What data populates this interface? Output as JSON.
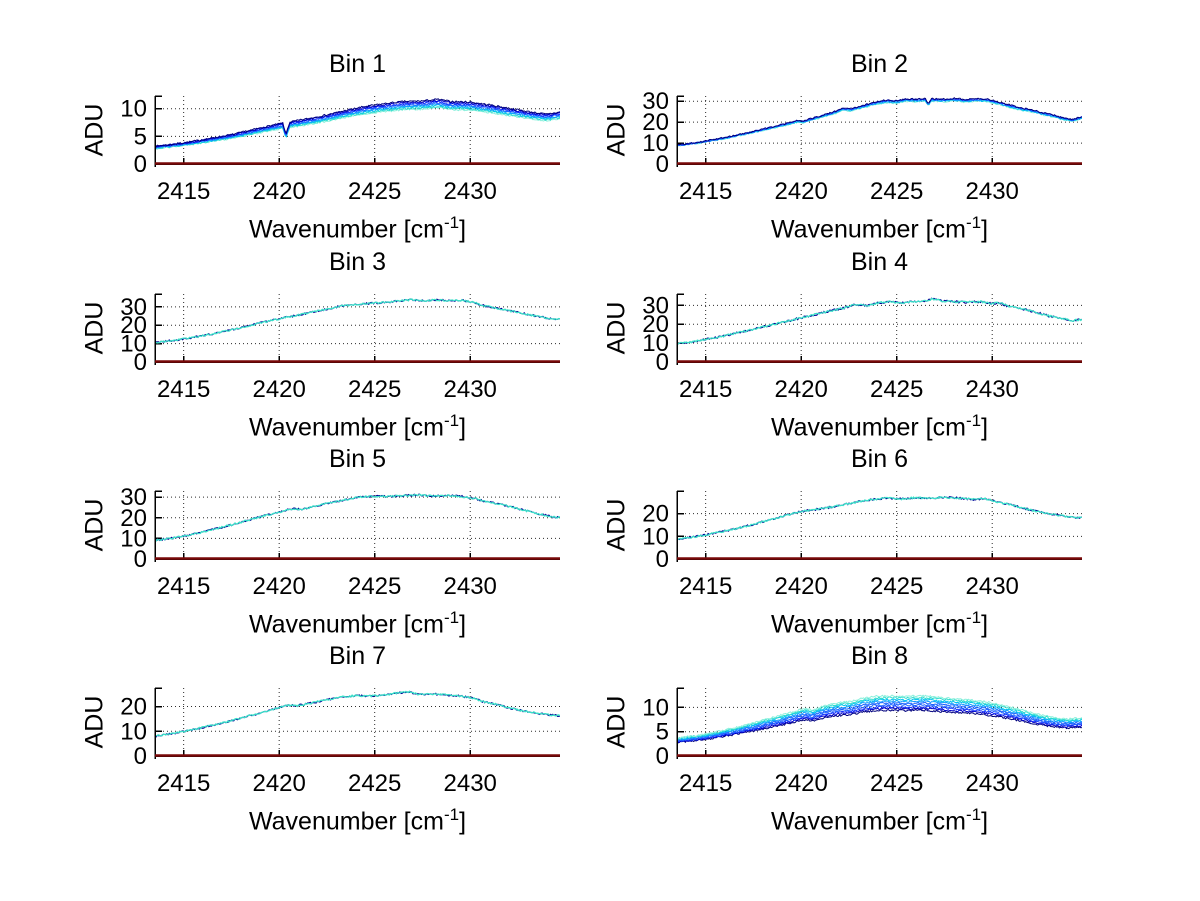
{
  "labels": {
    "ylabel": "ADU",
    "xlabel_prefix": "Wavenumber [cm",
    "xlabel_sup": "-1",
    "xlabel_suffix": "]"
  },
  "style": {
    "background": "#ffffff",
    "axis_color": "#000000",
    "text_color": "#000000",
    "grid_color": "#2a2a2a",
    "zero_line_color": "#780808",
    "single_cyan": "#3ae0c8",
    "single_navy": "#000096",
    "palette": [
      "#00007d",
      "#0000c8",
      "#1432ff",
      "#1e64ff",
      "#149bff",
      "#00c3f0",
      "#2bdccd",
      "#8af0dc"
    ]
  },
  "chart_data": [
    {
      "type": "line",
      "title": "Bin 1",
      "xlabel": "Wavenumber [cm⁻¹]",
      "ylabel": "ADU",
      "xlim": [
        2413.5,
        2434.7
      ],
      "xticks": [
        2415,
        2420,
        2425,
        2430
      ],
      "ylim": [
        0,
        12.3
      ],
      "yticks": [
        0,
        5,
        10
      ],
      "grid": true,
      "band": {
        "lines": 8,
        "spread_frac": 0.13,
        "dark": "top",
        "noise": 0.15
      },
      "anchors": [
        [
          2413.5,
          3.2
        ],
        [
          2414.5,
          3.6
        ],
        [
          2415.5,
          4.1
        ],
        [
          2416.5,
          4.7
        ],
        [
          2417.5,
          5.3
        ],
        [
          2418.5,
          6.1
        ],
        [
          2419.5,
          6.9
        ],
        [
          2420.2,
          7.4
        ],
        [
          2420.35,
          5.3
        ],
        [
          2420.55,
          7.6
        ],
        [
          2421.5,
          8.2
        ],
        [
          2422.5,
          8.9
        ],
        [
          2423.5,
          9.7
        ],
        [
          2424.5,
          10.4
        ],
        [
          2425.5,
          10.9
        ],
        [
          2426.5,
          11.3
        ],
        [
          2427.5,
          11.4
        ],
        [
          2428.3,
          11.7
        ],
        [
          2429,
          11.3
        ],
        [
          2430,
          11.2
        ],
        [
          2431,
          10.7
        ],
        [
          2432,
          10.1
        ],
        [
          2433,
          9.5
        ],
        [
          2434,
          9.0
        ],
        [
          2434.7,
          9.4
        ]
      ]
    },
    {
      "type": "line",
      "title": "Bin 2",
      "xlabel": "Wavenumber [cm⁻¹]",
      "ylabel": "ADU",
      "xlim": [
        2413.5,
        2434.7
      ],
      "xticks": [
        2415,
        2420,
        2425,
        2430
      ],
      "ylim": [
        0,
        32.5
      ],
      "yticks": [
        0,
        10,
        20,
        30
      ],
      "grid": true,
      "band": {
        "lines": 5,
        "spread_frac": 0.04,
        "dark": "top",
        "noise": 0.35
      },
      "anchors": [
        [
          2413.5,
          9.0
        ],
        [
          2414.5,
          10.2
        ],
        [
          2415.5,
          11.8
        ],
        [
          2416.5,
          13.6
        ],
        [
          2417.5,
          15.6
        ],
        [
          2418.5,
          17.8
        ],
        [
          2419.3,
          19.5
        ],
        [
          2419.8,
          20.8
        ],
        [
          2420.1,
          20.5
        ],
        [
          2421,
          23.0
        ],
        [
          2421.8,
          25.2
        ],
        [
          2422.2,
          26.8
        ],
        [
          2422.6,
          26.4
        ],
        [
          2423.3,
          28.2
        ],
        [
          2424,
          29.8
        ],
        [
          2424.5,
          30.6
        ],
        [
          2425,
          30.2
        ],
        [
          2425.5,
          31.2
        ],
        [
          2426,
          31.0
        ],
        [
          2426.5,
          31.4
        ],
        [
          2426.65,
          28.8
        ],
        [
          2426.8,
          31.2
        ],
        [
          2427.5,
          31.0
        ],
        [
          2428,
          31.4
        ],
        [
          2428.6,
          30.8
        ],
        [
          2429.2,
          31.3
        ],
        [
          2429.8,
          30.9
        ],
        [
          2430.3,
          29.8
        ],
        [
          2431,
          28.0
        ],
        [
          2431.6,
          26.6
        ],
        [
          2432,
          26.2
        ],
        [
          2432.6,
          24.6
        ],
        [
          2433.2,
          23.4
        ],
        [
          2433.8,
          21.9
        ],
        [
          2434.2,
          21.3
        ],
        [
          2434.7,
          22.6
        ]
      ]
    },
    {
      "type": "line",
      "title": "Bin 3",
      "xlabel": "Wavenumber [cm⁻¹]",
      "ylabel": "ADU",
      "xlim": [
        2413.5,
        2434.7
      ],
      "xticks": [
        2415,
        2420,
        2425,
        2430
      ],
      "ylim": [
        0,
        37
      ],
      "yticks": [
        0,
        10,
        20,
        30
      ],
      "grid": true,
      "band": {
        "lines": 2,
        "spread_frac": 0.012,
        "dark": "under",
        "noise": 0.45
      },
      "anchors": [
        [
          2413.5,
          10.5
        ],
        [
          2414.5,
          11.8
        ],
        [
          2415.5,
          13.4
        ],
        [
          2416.5,
          15.3
        ],
        [
          2417.5,
          17.5
        ],
        [
          2418.5,
          20.0
        ],
        [
          2419.5,
          22.4
        ],
        [
          2420.5,
          24.6
        ],
        [
          2421.5,
          26.6
        ],
        [
          2422.5,
          28.8
        ],
        [
          2423.2,
          30.4
        ],
        [
          2424,
          31.4
        ],
        [
          2424.8,
          31.9
        ],
        [
          2425.5,
          32.4
        ],
        [
          2426.2,
          33.2
        ],
        [
          2427,
          33.9
        ],
        [
          2427.6,
          33.3
        ],
        [
          2428.2,
          33.8
        ],
        [
          2429,
          33.3
        ],
        [
          2429.6,
          33.6
        ],
        [
          2430.2,
          32.4
        ],
        [
          2430.6,
          30.9
        ],
        [
          2431.2,
          29.6
        ],
        [
          2432,
          28.0
        ],
        [
          2432.8,
          26.3
        ],
        [
          2433.6,
          24.7
        ],
        [
          2434.2,
          23.6
        ],
        [
          2434.7,
          23.2
        ]
      ]
    },
    {
      "type": "line",
      "title": "Bin 4",
      "xlabel": "Wavenumber [cm⁻¹]",
      "ylabel": "ADU",
      "xlim": [
        2413.5,
        2434.7
      ],
      "xticks": [
        2415,
        2420,
        2425,
        2430
      ],
      "ylim": [
        0,
        36
      ],
      "yticks": [
        0,
        10,
        20,
        30
      ],
      "grid": true,
      "band": {
        "lines": 2,
        "spread_frac": 0.012,
        "dark": "under",
        "noise": 0.5
      },
      "anchors": [
        [
          2413.5,
          9.6
        ],
        [
          2414.5,
          11.0
        ],
        [
          2415.5,
          12.8
        ],
        [
          2416.5,
          15.0
        ],
        [
          2417.5,
          17.4
        ],
        [
          2418.5,
          19.8
        ],
        [
          2419.5,
          22.2
        ],
        [
          2420.5,
          24.6
        ],
        [
          2421.5,
          27.0
        ],
        [
          2422.3,
          28.8
        ],
        [
          2422.8,
          30.6
        ],
        [
          2423.4,
          29.9
        ],
        [
          2424,
          31.2
        ],
        [
          2424.6,
          32.1
        ],
        [
          2425.2,
          31.3
        ],
        [
          2425.8,
          31.9
        ],
        [
          2426.4,
          32.2
        ],
        [
          2426.9,
          33.4
        ],
        [
          2427.4,
          32.3
        ],
        [
          2428,
          31.9
        ],
        [
          2428.7,
          31.6
        ],
        [
          2429.4,
          32.0
        ],
        [
          2430,
          30.9
        ],
        [
          2430.4,
          31.4
        ],
        [
          2430.8,
          29.6
        ],
        [
          2431.5,
          28.3
        ],
        [
          2432.2,
          26.5
        ],
        [
          2433,
          24.3
        ],
        [
          2433.7,
          22.8
        ],
        [
          2434.2,
          22.0
        ],
        [
          2434.7,
          22.4
        ]
      ]
    },
    {
      "type": "line",
      "title": "Bin 5",
      "xlabel": "Wavenumber [cm⁻¹]",
      "ylabel": "ADU",
      "xlim": [
        2413.5,
        2434.7
      ],
      "xticks": [
        2415,
        2420,
        2425,
        2430
      ],
      "ylim": [
        0,
        33
      ],
      "yticks": [
        0,
        10,
        20,
        30
      ],
      "grid": true,
      "band": {
        "lines": 2,
        "spread_frac": 0.012,
        "dark": "under",
        "noise": 0.42
      },
      "anchors": [
        [
          2413.5,
          9.0
        ],
        [
          2414.5,
          10.3
        ],
        [
          2415.5,
          12.0
        ],
        [
          2416.5,
          14.2
        ],
        [
          2417.5,
          16.6
        ],
        [
          2418.5,
          19.2
        ],
        [
          2419.5,
          21.6
        ],
        [
          2420.2,
          23.2
        ],
        [
          2420.7,
          24.4
        ],
        [
          2421.2,
          24.1
        ],
        [
          2422,
          25.9
        ],
        [
          2422.8,
          27.4
        ],
        [
          2423.5,
          28.9
        ],
        [
          2424.2,
          30.0
        ],
        [
          2425,
          30.5
        ],
        [
          2425.8,
          30.3
        ],
        [
          2426.5,
          30.8
        ],
        [
          2427.2,
          31.1
        ],
        [
          2428,
          30.6
        ],
        [
          2428.8,
          30.9
        ],
        [
          2429.5,
          30.4
        ],
        [
          2430.2,
          29.4
        ],
        [
          2430.8,
          27.9
        ],
        [
          2431.5,
          26.7
        ],
        [
          2432.2,
          25.2
        ],
        [
          2433,
          23.3
        ],
        [
          2433.8,
          21.5
        ],
        [
          2434.3,
          20.4
        ],
        [
          2434.7,
          20.2
        ]
      ]
    },
    {
      "type": "line",
      "title": "Bin 6",
      "xlabel": "Wavenumber [cm⁻¹]",
      "ylabel": "ADU",
      "xlim": [
        2413.5,
        2434.7
      ],
      "xticks": [
        2415,
        2420,
        2425,
        2430
      ],
      "ylim": [
        0,
        30
      ],
      "yticks": [
        0,
        10,
        20
      ],
      "grid": true,
      "band": {
        "lines": 2,
        "spread_frac": 0.012,
        "dark": "under",
        "noise": 0.38
      },
      "anchors": [
        [
          2413.5,
          8.6
        ],
        [
          2414.5,
          9.9
        ],
        [
          2415.5,
          11.4
        ],
        [
          2416.5,
          13.2
        ],
        [
          2417.5,
          15.3
        ],
        [
          2418.5,
          17.6
        ],
        [
          2419.5,
          19.9
        ],
        [
          2420.2,
          21.3
        ],
        [
          2420.8,
          21.9
        ],
        [
          2421.5,
          22.8
        ],
        [
          2422.3,
          24.1
        ],
        [
          2423,
          25.3
        ],
        [
          2423.8,
          26.3
        ],
        [
          2424.5,
          26.9
        ],
        [
          2425.2,
          26.5
        ],
        [
          2426,
          27.1
        ],
        [
          2426.8,
          26.8
        ],
        [
          2427.5,
          27.2
        ],
        [
          2428.2,
          26.9
        ],
        [
          2429,
          26.3
        ],
        [
          2429.6,
          26.7
        ],
        [
          2430.2,
          25.3
        ],
        [
          2430.8,
          24.2
        ],
        [
          2431.5,
          22.7
        ],
        [
          2432.2,
          21.2
        ],
        [
          2433,
          19.9
        ],
        [
          2433.7,
          19.0
        ],
        [
          2434.2,
          18.4
        ],
        [
          2434.7,
          18.1
        ]
      ]
    },
    {
      "type": "line",
      "title": "Bin 7",
      "xlabel": "Wavenumber [cm⁻¹]",
      "ylabel": "ADU",
      "xlim": [
        2413.5,
        2434.7
      ],
      "xticks": [
        2415,
        2420,
        2425,
        2430
      ],
      "ylim": [
        0,
        27.5
      ],
      "yticks": [
        0,
        10,
        20
      ],
      "grid": true,
      "band": {
        "lines": 2,
        "spread_frac": 0.015,
        "dark": "under",
        "noise": 0.33
      },
      "anchors": [
        [
          2413.5,
          8.0
        ],
        [
          2414.5,
          9.2
        ],
        [
          2415.5,
          10.7
        ],
        [
          2416.5,
          12.4
        ],
        [
          2417.5,
          14.3
        ],
        [
          2418.5,
          16.4
        ],
        [
          2419.3,
          18.0
        ],
        [
          2419.9,
          19.3
        ],
        [
          2420.4,
          20.6
        ],
        [
          2420.9,
          20.3
        ],
        [
          2421.6,
          21.3
        ],
        [
          2422.4,
          22.6
        ],
        [
          2423.2,
          23.8
        ],
        [
          2424,
          24.4
        ],
        [
          2424.8,
          24.3
        ],
        [
          2425.6,
          24.8
        ],
        [
          2426.3,
          25.6
        ],
        [
          2426.8,
          25.9
        ],
        [
          2427.3,
          24.9
        ],
        [
          2428,
          25.1
        ],
        [
          2428.8,
          24.7
        ],
        [
          2429.5,
          24.2
        ],
        [
          2430.2,
          23.3
        ],
        [
          2430.7,
          21.9
        ],
        [
          2431.3,
          21.0
        ],
        [
          2432,
          19.5
        ],
        [
          2432.8,
          18.2
        ],
        [
          2433.6,
          17.2
        ],
        [
          2434.2,
          16.6
        ],
        [
          2434.7,
          16.3
        ]
      ]
    },
    {
      "type": "line",
      "title": "Bin 8",
      "xlabel": "Wavenumber [cm⁻¹]",
      "ylabel": "ADU",
      "xlim": [
        2413.5,
        2434.7
      ],
      "xticks": [
        2415,
        2420,
        2425,
        2430
      ],
      "ylim": [
        0,
        14
      ],
      "yticks": [
        0,
        5,
        10
      ],
      "grid": true,
      "band": {
        "lines": 9,
        "spread_frac": 0.24,
        "dark": "bottom",
        "noise": 0.18
      },
      "anchors": [
        [
          2413.5,
          3.7
        ],
        [
          2414.5,
          4.2
        ],
        [
          2415.5,
          4.9
        ],
        [
          2416.5,
          5.8
        ],
        [
          2417.5,
          6.8
        ],
        [
          2418.5,
          7.9
        ],
        [
          2419.5,
          9.0
        ],
        [
          2420.2,
          9.8
        ],
        [
          2420.6,
          9.5
        ],
        [
          2421.2,
          10.4
        ],
        [
          2422,
          11.0
        ],
        [
          2422.6,
          11.2
        ],
        [
          2423.2,
          11.9
        ],
        [
          2424,
          12.3
        ],
        [
          2424.8,
          12.4
        ],
        [
          2425.6,
          12.3
        ],
        [
          2426.4,
          12.4
        ],
        [
          2427.2,
          12.1
        ],
        [
          2428,
          11.8
        ],
        [
          2428.8,
          11.6
        ],
        [
          2429.6,
          11.2
        ],
        [
          2430.3,
          10.7
        ],
        [
          2431,
          10.0
        ],
        [
          2431.8,
          9.2
        ],
        [
          2432.6,
          8.4
        ],
        [
          2433.3,
          7.9
        ],
        [
          2434,
          7.6
        ],
        [
          2434.7,
          7.9
        ]
      ]
    }
  ]
}
